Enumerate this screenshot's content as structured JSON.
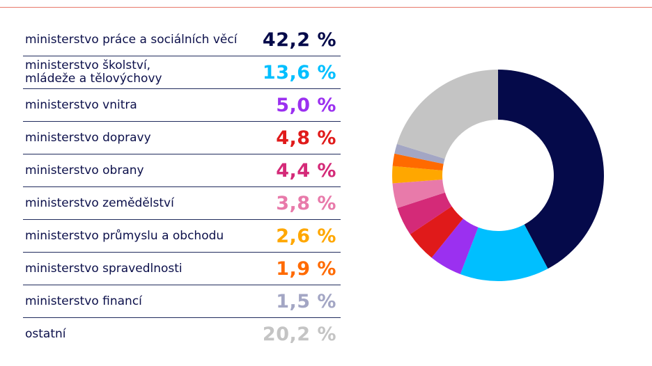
{
  "chart_data": {
    "type": "pie",
    "donut": true,
    "categories": [
      "ministerstvo práce a sociálních věcí",
      "ministerstvo školství,\nmládeže a tělovýchovy",
      "ministerstvo vnitra",
      "ministerstvo dopravy",
      "ministerstvo obrany",
      "ministerstvo zemědělství",
      "ministerstvo průmyslu a obchodu",
      "ministerstvo spravedlnosti",
      "ministerstvo financí",
      "ostatní"
    ],
    "values": [
      42.2,
      13.6,
      5.0,
      4.8,
      4.4,
      3.8,
      2.6,
      1.9,
      1.5,
      20.2
    ],
    "value_labels": [
      "42,2 %",
      "13,6 %",
      "5,0 %",
      "4,8 %",
      "4,4 %",
      "3,8 %",
      "2,6 %",
      "1,9 %",
      "1,5 %",
      "20,2 %"
    ],
    "colors": [
      "#050a4a",
      "#00bfff",
      "#9b30f0",
      "#e01a1a",
      "#d42a78",
      "#e87aaa",
      "#ffa700",
      "#ff6a00",
      "#a3a6c4",
      "#c4c4c4"
    ],
    "legend_placement": "left"
  }
}
